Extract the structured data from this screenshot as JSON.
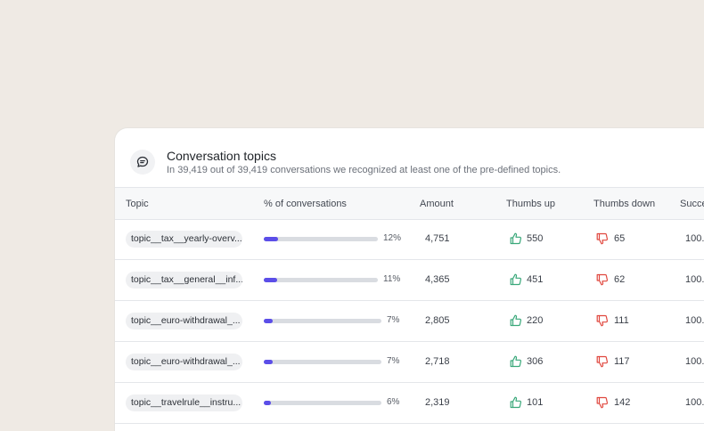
{
  "card": {
    "title": "Conversation topics",
    "subtitle": "In 39,419 out of 39,419 conversations we recognized at least one of the pre-defined topics."
  },
  "columns": {
    "topic": "Topic",
    "pct": "% of conversations",
    "amount": "Amount",
    "thumbs_up": "Thumbs up",
    "thumbs_down": "Thumbs down",
    "success": "Succe"
  },
  "colors": {
    "accent": "#5b4ee8",
    "positive": "#3aa87a",
    "negative": "#e0483f"
  },
  "icons": {
    "header": "chat-bubble-icon",
    "up": "thumbs-up-icon",
    "down": "thumbs-down-icon"
  },
  "rows": [
    {
      "topic": "topic__tax__yearly-overv...",
      "pct_label": "12%",
      "pct_value": 12,
      "amount": "4,751",
      "thumbs_up": "550",
      "thumbs_down": "65",
      "success": "100."
    },
    {
      "topic": "topic__tax__general__inf...",
      "pct_label": "11%",
      "pct_value": 11,
      "amount": "4,365",
      "thumbs_up": "451",
      "thumbs_down": "62",
      "success": "100."
    },
    {
      "topic": "topic__euro-withdrawal_...",
      "pct_label": "7%",
      "pct_value": 7,
      "amount": "2,805",
      "thumbs_up": "220",
      "thumbs_down": "111",
      "success": "100."
    },
    {
      "topic": "topic__euro-withdrawal_...",
      "pct_label": "7%",
      "pct_value": 7,
      "amount": "2,718",
      "thumbs_up": "306",
      "thumbs_down": "117",
      "success": "100."
    },
    {
      "topic": "topic__travelrule__instru...",
      "pct_label": "6%",
      "pct_value": 6,
      "amount": "2,319",
      "thumbs_up": "101",
      "thumbs_down": "142",
      "success": "100."
    }
  ]
}
